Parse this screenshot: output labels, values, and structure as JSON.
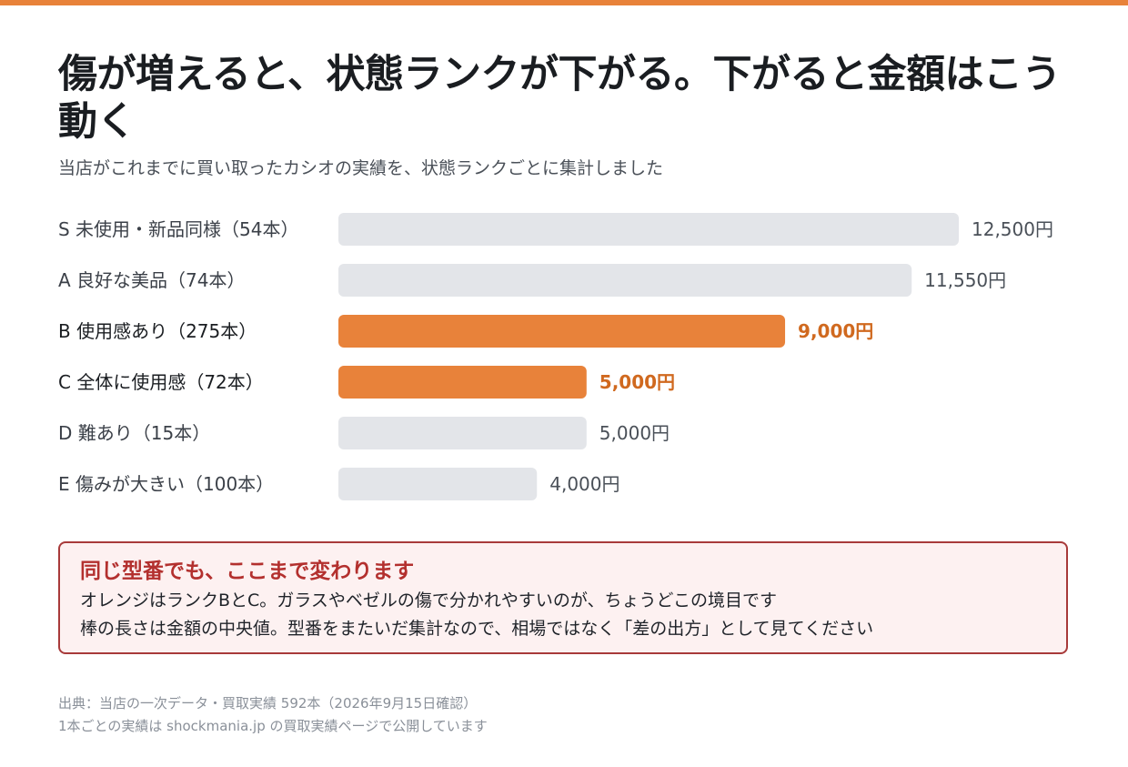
{
  "title": "傷が増えると、状態ランクが下がる。下がると金額はこう動く",
  "subtitle": "当店がこれまでに買い取ったカシオの実績を、状態ランクごとに集計しました",
  "colors": {
    "accent": "#e8823a",
    "bar_default": "#e3e5e9",
    "value_highlight": "#d0691f",
    "callout_border": "#a83a3a",
    "callout_bg": "#fdf1f1"
  },
  "chart_data": {
    "type": "bar",
    "orientation": "horizontal",
    "categories": [
      "S 未使用・新品同様（54本）",
      "A 良好な美品（74本）",
      "B 使用感あり（275本）",
      "C 全体に使用感（72本）",
      "D 難あり（15本）",
      "E 傷みが大きい（100本）"
    ],
    "values": [
      12500,
      11550,
      9000,
      5000,
      5000,
      4000
    ],
    "value_labels": [
      "12,500円",
      "11,550円",
      "9,000円",
      "5,000円",
      "5,000円",
      "4,000円"
    ],
    "highlight": [
      false,
      false,
      true,
      true,
      false,
      false
    ],
    "xlim": [
      0,
      12500
    ],
    "grid": false
  },
  "callout": {
    "title": "同じ型番でも、ここまで変わります",
    "lines": [
      "オレンジはランクBとC。ガラスやベゼルの傷で分かれやすいのが、ちょうどこの境目です",
      "棒の長さは金額の中央値。型番をまたいだ集計なので、相場ではなく「差の出方」として見てください"
    ]
  },
  "footer": {
    "source": "出典：当店の一次データ・買取実績 592本（2026年9月15日確認）",
    "note": "1本ごとの実績は shockmania.jp の買取実績ページで公開しています"
  }
}
